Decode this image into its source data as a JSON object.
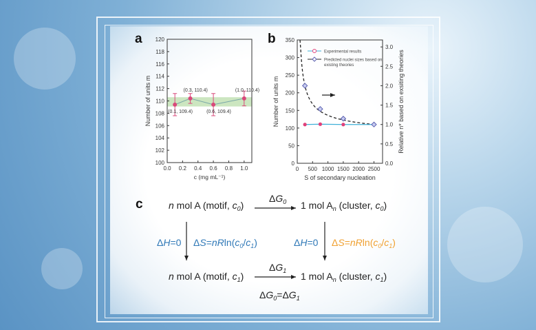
{
  "panels": {
    "a": "a",
    "b": "b",
    "c": "c"
  },
  "chart_data": [
    {
      "type": "line",
      "panel": "a",
      "xlabel": "c (mg mL⁻¹)",
      "ylabel": "Number of units m",
      "xlim": [
        0.0,
        1.1
      ],
      "ylim": [
        100,
        120
      ],
      "xticks": [
        "0.0",
        "0.2",
        "0.4",
        "0.6",
        "0.8",
        "1.0"
      ],
      "yticks": [
        "100",
        "102",
        "104",
        "106",
        "108",
        "110",
        "112",
        "114",
        "116",
        "118",
        "120"
      ],
      "band": [
        109.1,
        110.6
      ],
      "band_color": "#bfe0b0",
      "line_color": "#7aa7a8",
      "marker_color": "#d9487a",
      "points": [
        {
          "x": 0.1,
          "y": 109.4,
          "err": 1.8,
          "label": "(0.1, 109.4)"
        },
        {
          "x": 0.3,
          "y": 110.4,
          "err": 0.8,
          "label": "(0.3, 110.4)"
        },
        {
          "x": 0.6,
          "y": 109.4,
          "err": 1.8,
          "label": "(0.6, 109.4)"
        },
        {
          "x": 1.0,
          "y": 110.4,
          "err": 1.2,
          "label": "(1.0, 110.4)"
        }
      ]
    },
    {
      "type": "line",
      "panel": "b",
      "xlabel": "S of secondary nucleation",
      "ylabel": "Number of units m",
      "y2label": "Relative n* based on exsiting theories",
      "xlim": [
        0,
        2780
      ],
      "ylim": [
        0,
        350
      ],
      "y2lim": [
        0,
        3.18
      ],
      "xticks": [
        "0",
        "500",
        "1000",
        "1500",
        "2000",
        "2500"
      ],
      "yticks": [
        "0",
        "50",
        "100",
        "150",
        "200",
        "250",
        "300",
        "350"
      ],
      "y2ticks": [
        "0.0",
        "0.5",
        "1.0",
        "1.5",
        "2.0",
        "2.5",
        "3.0"
      ],
      "legend_position": "top-right",
      "series": [
        {
          "name": "Experimental results",
          "axis": "left",
          "color": "#3fb0d8",
          "marker_color": "#e0407a",
          "x": [
            250,
            750,
            1500,
            2500
          ],
          "y": [
            110,
            111,
            110,
            110
          ]
        },
        {
          "name": "Predicted nuclei sizes based on existing theories",
          "axis": "right",
          "color": "#222222",
          "marker_color": "#5a5fb0",
          "x": [
            250,
            750,
            1500,
            2500
          ],
          "y": [
            2.0,
            1.4,
            1.15,
            1.0
          ]
        }
      ],
      "annotation": "arrow-right pointing to right axis"
    }
  ],
  "scheme": {
    "top_left": [
      {
        "t": "n",
        "i": 1
      },
      {
        "t": " mol A (motif, "
      },
      {
        "t": "c",
        "i": 1,
        "s": "0"
      },
      {
        "t": ")"
      }
    ],
    "top_right": [
      {
        "t": "1 mol A"
      },
      {
        "t": "",
        "s": "n"
      },
      {
        "t": " (cluster, "
      },
      {
        "t": "c",
        "i": 1,
        "s": "0"
      },
      {
        "t": ")"
      }
    ],
    "bottom_left": [
      {
        "t": "n",
        "i": 1
      },
      {
        "t": " mol A (motif, "
      },
      {
        "t": "c",
        "i": 1,
        "s": "1"
      },
      {
        "t": ")"
      }
    ],
    "bottom_right": [
      {
        "t": "1 mol A"
      },
      {
        "t": "",
        "s": "n"
      },
      {
        "t": " (cluster, "
      },
      {
        "t": "c",
        "i": 1,
        "s": "1"
      },
      {
        "t": ")"
      }
    ],
    "dg0": [
      {
        "t": "Δ"
      },
      {
        "t": "G",
        "i": 1,
        "s": "0"
      }
    ],
    "dg1": [
      {
        "t": "Δ"
      },
      {
        "t": "G",
        "i": 1,
        "s": "1"
      }
    ],
    "dh_left": [
      {
        "t": "Δ"
      },
      {
        "t": "H",
        "i": 1
      },
      {
        "t": "=0"
      }
    ],
    "ds_left": [
      {
        "t": "Δ"
      },
      {
        "t": "S",
        "i": 1
      },
      {
        "t": "="
      },
      {
        "t": "nR",
        "i": 1
      },
      {
        "t": "ln("
      },
      {
        "t": "c",
        "i": 1,
        "s": "0"
      },
      {
        "t": "/"
      },
      {
        "t": "c",
        "i": 1,
        "s": "1"
      },
      {
        "t": ")"
      }
    ],
    "dh_right": [
      {
        "t": "Δ"
      },
      {
        "t": "H",
        "i": 1
      },
      {
        "t": "=0"
      }
    ],
    "ds_right": [
      {
        "t": "Δ"
      },
      {
        "t": "S",
        "i": 1
      },
      {
        "t": "="
      },
      {
        "t": "nR",
        "i": 1
      },
      {
        "t": "ln("
      },
      {
        "t": "c",
        "i": 1,
        "s": "0"
      },
      {
        "t": "/"
      },
      {
        "t": "c",
        "i": 1,
        "s": "1"
      },
      {
        "t": ")"
      }
    ],
    "equality": [
      {
        "t": "Δ"
      },
      {
        "t": "G",
        "i": 1,
        "s": "0"
      },
      {
        "t": "=Δ"
      },
      {
        "t": "G",
        "i": 1,
        "s": "1"
      }
    ],
    "colors": {
      "enthalpy": "#2f78b7",
      "entropy_left": "#2f78b7",
      "entropy_right": "#f0a030"
    }
  }
}
